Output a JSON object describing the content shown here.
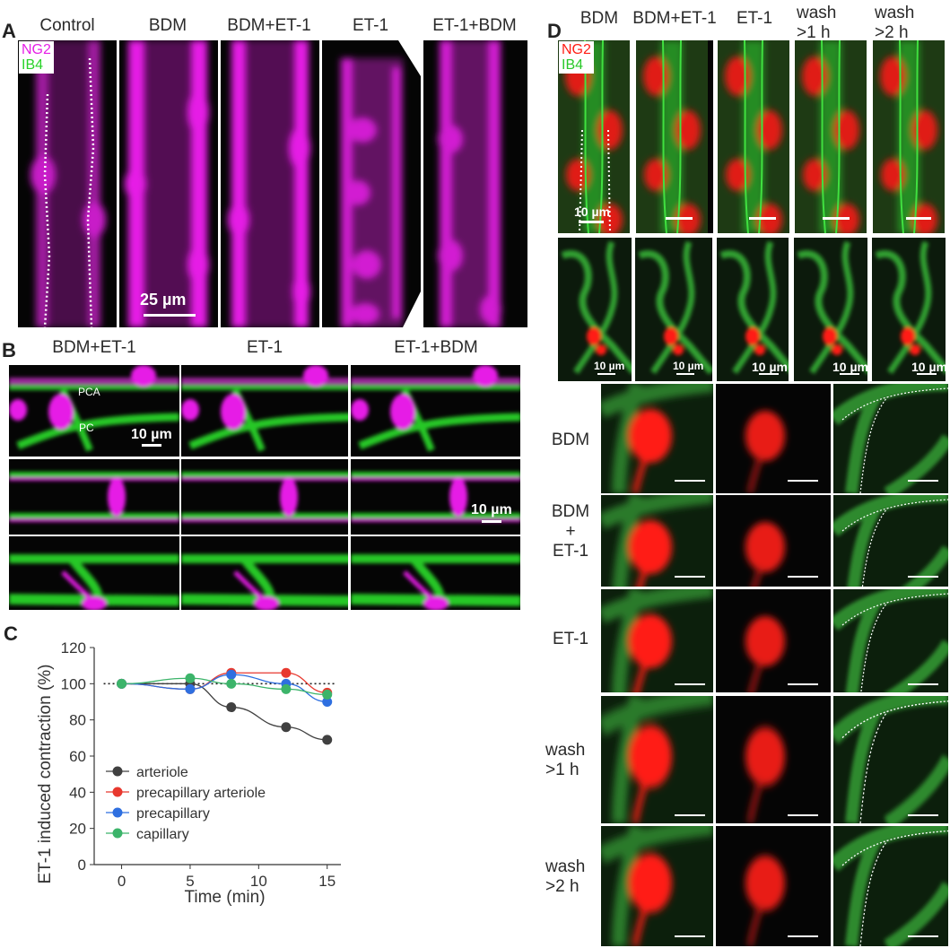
{
  "panels": {
    "A": "A",
    "B": "B",
    "C": "C",
    "D": "D"
  },
  "panelA": {
    "headers": [
      "Control",
      "BDM",
      "BDM+ET-1",
      "ET-1",
      "ET-1+BDM"
    ],
    "legend": {
      "ng2": "NG2",
      "ib4": "IB4"
    },
    "scale": "25 µm",
    "colors": {
      "ng2": "#e61ee6",
      "ib4": "#28d228"
    }
  },
  "panelB": {
    "headers": [
      "BDM+ET-1",
      "ET-1",
      "ET-1+BDM"
    ],
    "labels": {
      "pca": "PCA",
      "pc": "PC"
    },
    "scale1": "10 µm",
    "scale2": "10 µm"
  },
  "panelD": {
    "headers": [
      "BDM",
      "BDM+ET-1",
      "ET-1",
      "wash\n>1 h",
      "wash\n>2 h"
    ],
    "legend": {
      "ng2": "NG2",
      "ib4": "IB4"
    },
    "scale_top": "10 µm",
    "scale_mid": [
      "10 µm",
      "10 µm",
      "10 µm",
      "10 µm",
      "10 µm"
    ],
    "row_labels": [
      "BDM",
      "BDM\n+\nET-1",
      "ET-1",
      "wash\n>1 h",
      "wash\n>2 h"
    ],
    "colors": {
      "ng2": "#ff1e14",
      "ib4": "#28c828"
    }
  },
  "chart_data": {
    "type": "line",
    "xlabel": "Time (min)",
    "ylabel": "ET-1 induced contraction (%)",
    "xlim": [
      -2,
      16
    ],
    "ylim": [
      0,
      120
    ],
    "xticks": [
      0,
      5,
      10,
      15
    ],
    "yticks": [
      0,
      20,
      40,
      60,
      80,
      100,
      120
    ],
    "reference_line": 100,
    "series": [
      {
        "name": "arteriole",
        "color": "#404040",
        "x": [
          0,
          5,
          8,
          12,
          15
        ],
        "y": [
          100,
          100,
          87,
          76,
          69
        ]
      },
      {
        "name": "precapillary arteriole",
        "color": "#e8382e",
        "x": [
          0,
          5,
          8,
          12,
          15
        ],
        "y": [
          100,
          97,
          106,
          106,
          95
        ]
      },
      {
        "name": "precapillary",
        "color": "#2e6fe0",
        "x": [
          0,
          5,
          8,
          12,
          15
        ],
        "y": [
          100,
          97,
          105,
          100,
          90
        ]
      },
      {
        "name": "capillary",
        "color": "#3cb46a",
        "x": [
          0,
          5,
          8,
          12,
          15
        ],
        "y": [
          100,
          103,
          100,
          97,
          94
        ]
      }
    ]
  }
}
